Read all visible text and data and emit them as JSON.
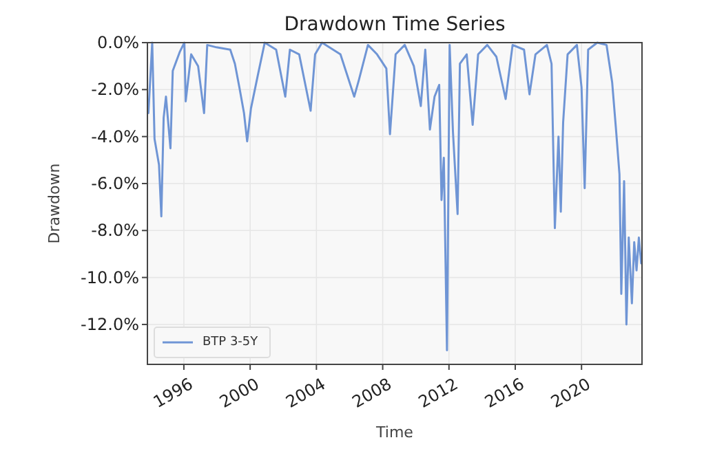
{
  "chart_data": {
    "type": "line",
    "title": "Drawdown Time Series",
    "xlabel": "Time",
    "ylabel": "Drawdown",
    "xlim": [
      1993.8,
      2023.65
    ],
    "xticks": [
      1996,
      2000,
      2004,
      2008,
      2012,
      2016,
      2020
    ],
    "ylim": [
      -13.7,
      0
    ],
    "yticks": [
      {
        "value": 0,
        "label": "0.0%"
      },
      {
        "value": -2,
        "label": "-2.0%"
      },
      {
        "value": -4,
        "label": "-4.0%"
      },
      {
        "value": -6,
        "label": "-6.0%"
      },
      {
        "value": -8,
        "label": "-8.0%"
      },
      {
        "value": -10,
        "label": "-10.0%"
      },
      {
        "value": -12,
        "label": "-12.0%"
      }
    ],
    "grid": true,
    "legend": "bottom left",
    "line_style": "solid",
    "marker": "none",
    "series": [
      {
        "name": "BTP 3-5Y",
        "color": "#6f95d5",
        "x": [
          1993.86,
          1994.09,
          1994.23,
          1994.5,
          1994.64,
          1994.78,
          1994.92,
          1995.19,
          1995.33,
          1995.75,
          1996.03,
          1996.11,
          1996.44,
          1996.86,
          1997.22,
          1997.41,
          1997.97,
          1998.8,
          1999.08,
          1999.35,
          1999.63,
          1999.82,
          2000.05,
          2000.46,
          2000.88,
          2001.57,
          2002.12,
          2002.4,
          2002.96,
          2003.65,
          2003.92,
          2004.34,
          2005.45,
          2006.28,
          2006.56,
          2007.11,
          2007.66,
          2008.22,
          2008.44,
          2008.78,
          2009.33,
          2009.88,
          2010.3,
          2010.57,
          2010.85,
          2011.13,
          2011.41,
          2011.55,
          2011.69,
          2011.88,
          2012.04,
          2012.24,
          2012.52,
          2012.66,
          2013.07,
          2013.43,
          2013.76,
          2014.31,
          2014.86,
          2015.42,
          2015.84,
          2016.53,
          2016.86,
          2017.22,
          2017.91,
          2018.19,
          2018.39,
          2018.61,
          2018.75,
          2018.89,
          2019.16,
          2019.72,
          2020.0,
          2020.19,
          2020.4,
          2020.95,
          2021.51,
          2021.85,
          2022.07,
          2022.29,
          2022.4,
          2022.57,
          2022.71,
          2022.85,
          2023.04,
          2023.18,
          2023.32,
          2023.46,
          2023.6
        ],
        "values": [
          -3.0,
          0,
          -4.1,
          -5.2,
          -7.4,
          -3.2,
          -2.3,
          -4.5,
          -1.2,
          -0.4,
          0,
          -2.5,
          -0.5,
          -1.0,
          -3.0,
          -0.1,
          -0.2,
          -0.3,
          -0.9,
          -1.9,
          -3.0,
          -4.2,
          -2.8,
          -1.4,
          0,
          -0.3,
          -2.3,
          -0.3,
          -0.5,
          -2.9,
          -0.5,
          0,
          -0.5,
          -2.3,
          -1.6,
          -0.1,
          -0.5,
          -1.1,
          -3.9,
          -0.5,
          -0.1,
          -1.0,
          -2.7,
          -0.3,
          -3.7,
          -2.3,
          -1.8,
          -6.7,
          -4.9,
          -13.1,
          -0.1,
          -3.8,
          -7.3,
          -0.9,
          -0.5,
          -3.5,
          -0.5,
          -0.1,
          -0.6,
          -2.4,
          -0.1,
          -0.3,
          -2.2,
          -0.5,
          -0.1,
          -0.9,
          -7.9,
          -4.0,
          -7.2,
          -3.4,
          -0.5,
          -0.1,
          -1.9,
          -6.2,
          -0.3,
          0,
          -0.1,
          -1.7,
          -3.6,
          -5.6,
          -10.7,
          -5.9,
          -12.0,
          -8.3,
          -11.1,
          -8.5,
          -9.7,
          -8.3,
          -9.4
        ]
      }
    ]
  }
}
